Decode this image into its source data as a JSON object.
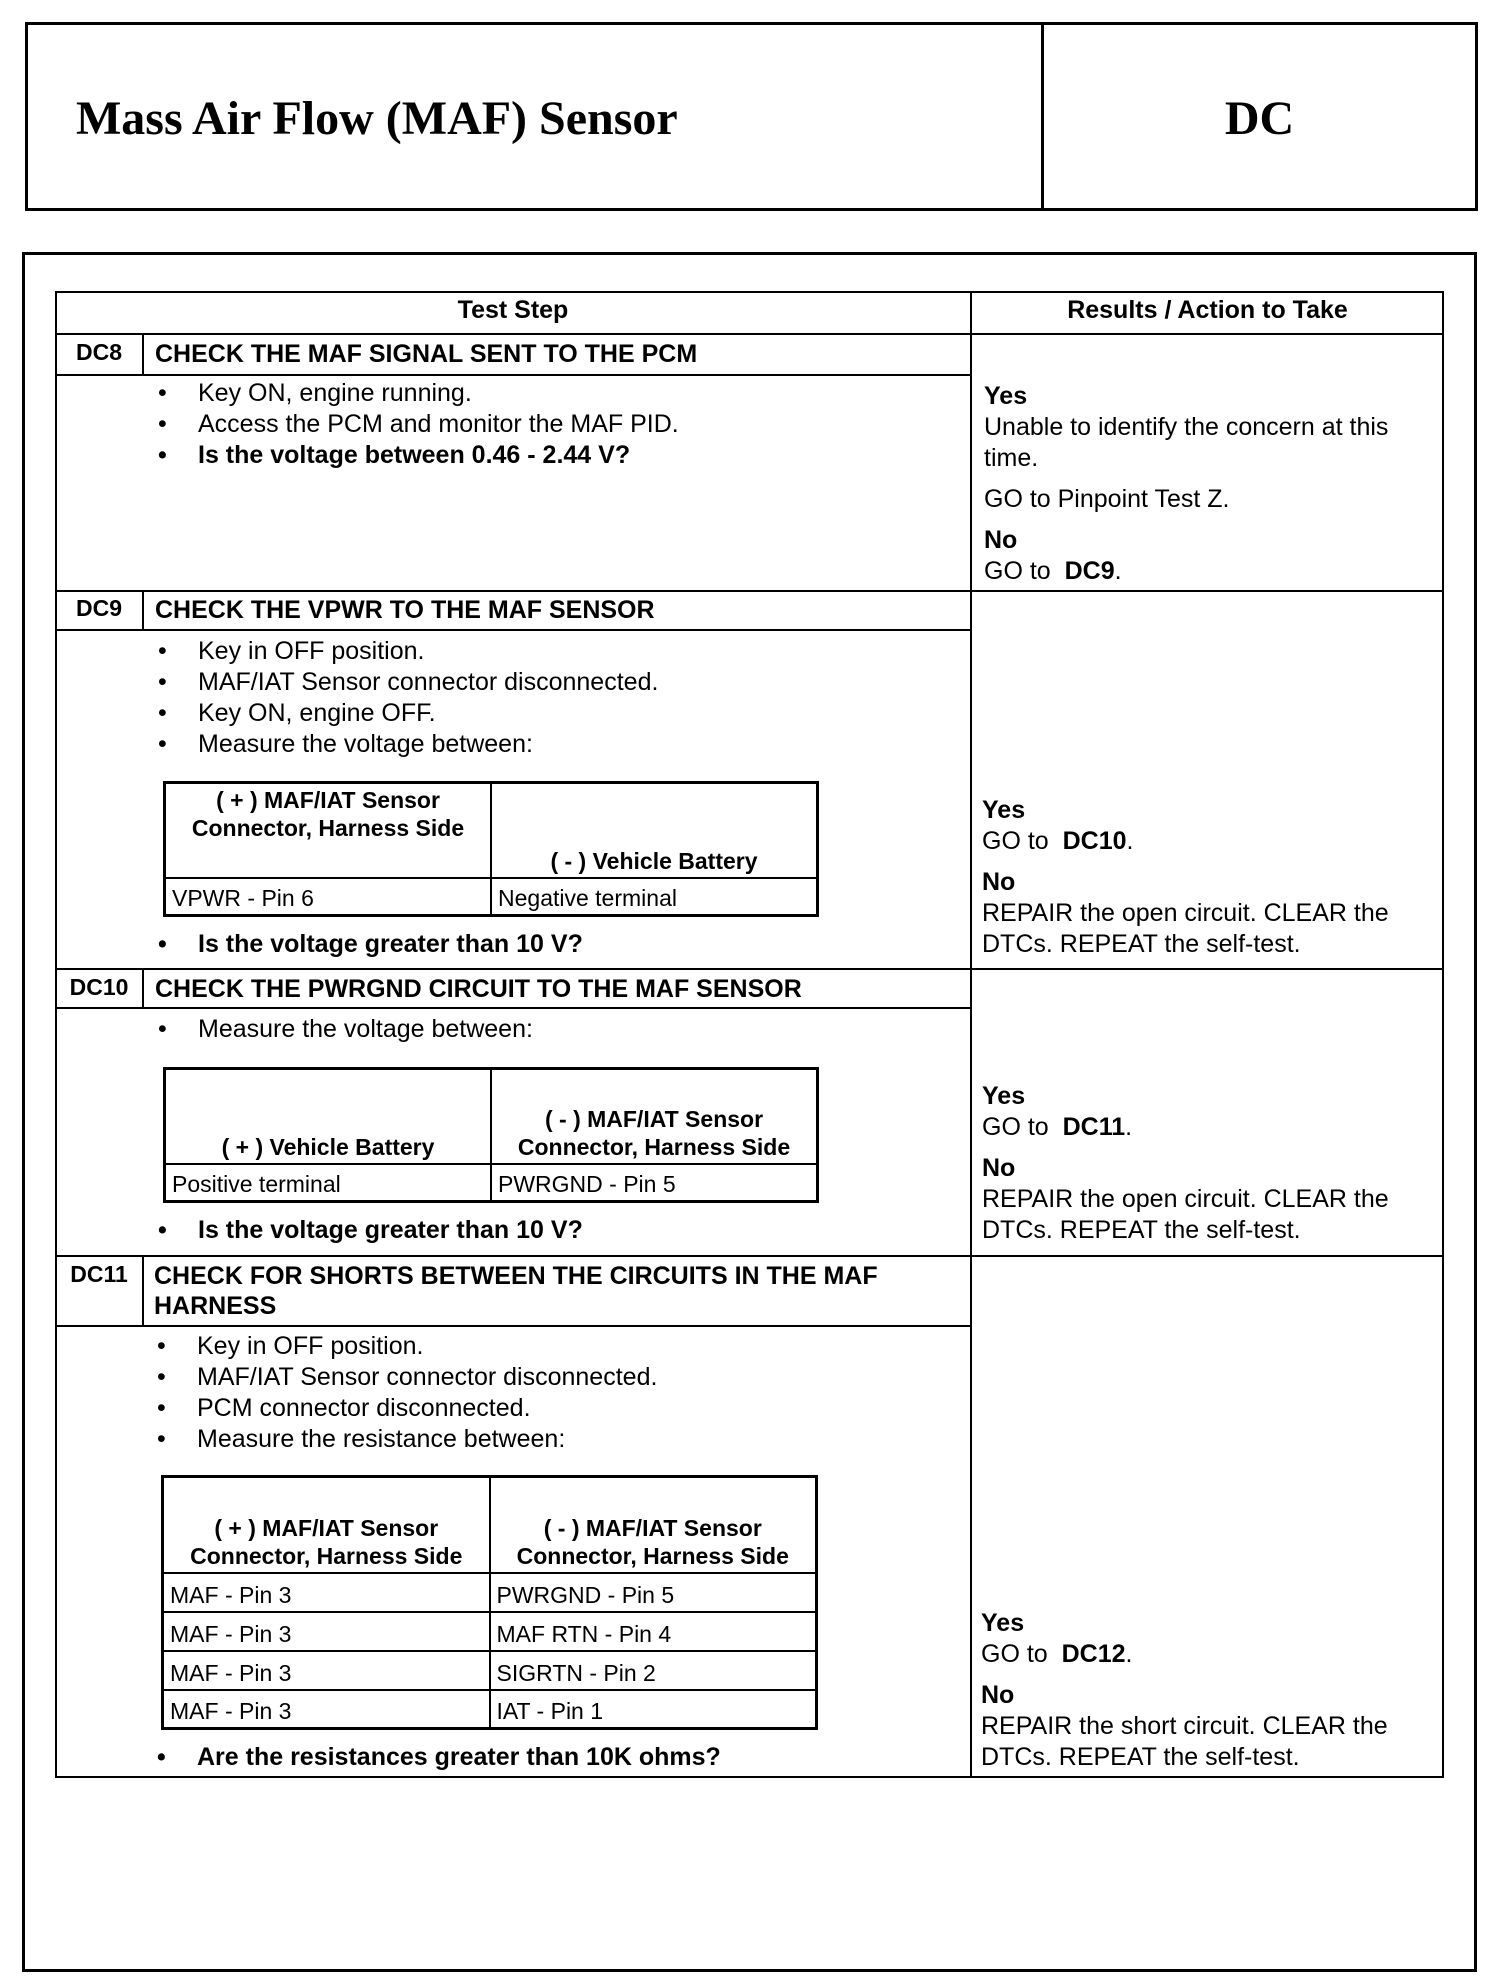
{
  "header": {
    "title": "Mass Air Flow (MAF) Sensor",
    "code": "DC"
  },
  "table": {
    "col_test_step": "Test Step",
    "col_results": "Results / Action to Take",
    "steps": [
      {
        "id": "DC8",
        "title": "CHECK THE MAF SIGNAL SENT TO THE PCM",
        "bullets": [
          "Key ON, engine running.",
          "Access the PCM and monitor the MAF PID.",
          "Is the voltage between 0.46 - 2.44 V?"
        ],
        "yes_label": "Yes",
        "yes_text": "Unable to identify the concern at this time.",
        "yes_text2": "GO to Pinpoint Test Z.",
        "no_label": "No",
        "no_text": "GO to",
        "no_ref": "DC9",
        "no_end": "."
      },
      {
        "id": "DC9",
        "title": "CHECK THE VPWR TO THE MAF SENSOR",
        "bullets": [
          "Key in OFF position.",
          "MAF/IAT Sensor connector disconnected.",
          "Key ON, engine OFF.",
          "Measure the voltage between:"
        ],
        "subtable": {
          "headers": [
            "( + ) MAF/IAT Sensor Connector, Harness Side",
            "( - ) Vehicle Battery"
          ],
          "rows": [
            [
              "VPWR - Pin 6",
              "Negative terminal"
            ]
          ]
        },
        "question": "Is the voltage greater than 10 V?",
        "yes_label": "Yes",
        "yes_text": "GO to",
        "yes_ref": "DC10",
        "yes_end": ".",
        "no_label": "No",
        "no_text": "REPAIR the open circuit. CLEAR the DTCs. REPEAT the self-test."
      },
      {
        "id": "DC10",
        "title": "CHECK THE PWRGND CIRCUIT TO THE MAF SENSOR",
        "bullets": [
          "Measure the voltage between:"
        ],
        "subtable": {
          "headers": [
            "( + ) Vehicle Battery",
            "( - ) MAF/IAT Sensor Connector, Harness Side"
          ],
          "rows": [
            [
              "Positive terminal",
              "PWRGND - Pin 5"
            ]
          ]
        },
        "question": "Is the voltage greater than 10 V?",
        "yes_label": "Yes",
        "yes_text": "GO to",
        "yes_ref": "DC11",
        "yes_end": ".",
        "no_label": "No",
        "no_text": "REPAIR the open circuit. CLEAR the DTCs. REPEAT the self-test."
      },
      {
        "id": "DC11",
        "title": "CHECK FOR SHORTS BETWEEN THE CIRCUITS IN THE MAF HARNESS",
        "bullets": [
          "Key in OFF position.",
          "MAF/IAT Sensor connector disconnected.",
          "PCM connector disconnected.",
          "Measure the resistance between:"
        ],
        "subtable": {
          "headers": [
            "( + ) MAF/IAT Sensor Connector, Harness Side",
            "( - ) MAF/IAT Sensor Connector, Harness Side"
          ],
          "rows": [
            [
              "MAF - Pin 3",
              "PWRGND - Pin 5"
            ],
            [
              "MAF - Pin 3",
              "MAF RTN - Pin 4"
            ],
            [
              "MAF - Pin 3",
              "SIGRTN - Pin 2"
            ],
            [
              "MAF - Pin 3",
              "IAT - Pin 1"
            ]
          ]
        },
        "question": "Are the resistances greater than 10K ohms?",
        "yes_label": "Yes",
        "yes_text": "GO to",
        "yes_ref": "DC12",
        "yes_end": ".",
        "no_label": "No",
        "no_text": "REPAIR the short circuit. CLEAR the DTCs. REPEAT the self-test."
      }
    ]
  }
}
